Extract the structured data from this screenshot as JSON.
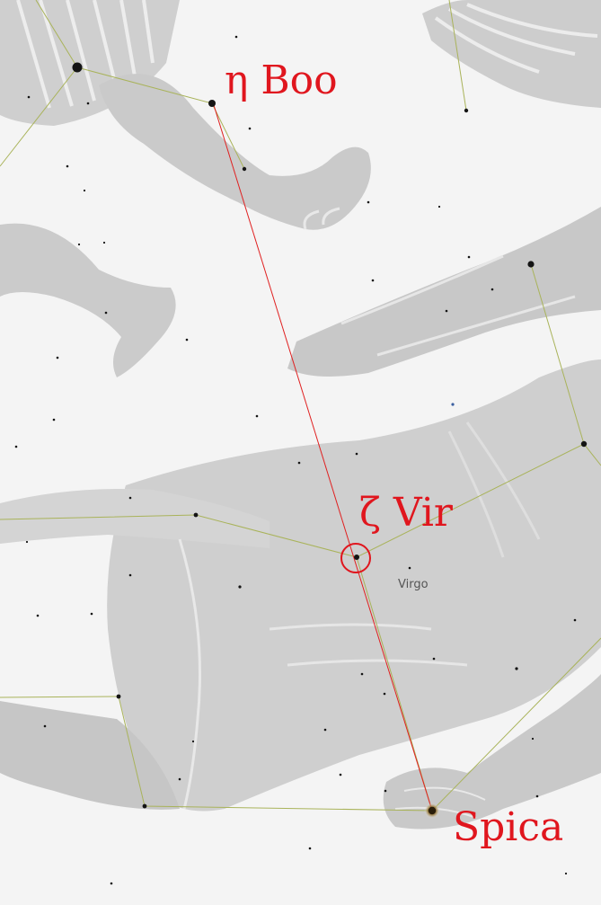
{
  "colors": {
    "background": "#f4f4f4",
    "figure_shade": "#c9c9c9",
    "figure_highlight": "#e6e6e6",
    "constellation_line": "#a9b35a",
    "pointer_line": "#e02020",
    "label_red": "#e0161e",
    "label_gray": "#555555",
    "star": "#141414",
    "spica_glow": "#9a7a3a"
  },
  "labels": {
    "eta_boo": "η Boo",
    "zeta_vir": "ζ Vir",
    "spica": "Spica",
    "constellation": "Virgo"
  }
}
